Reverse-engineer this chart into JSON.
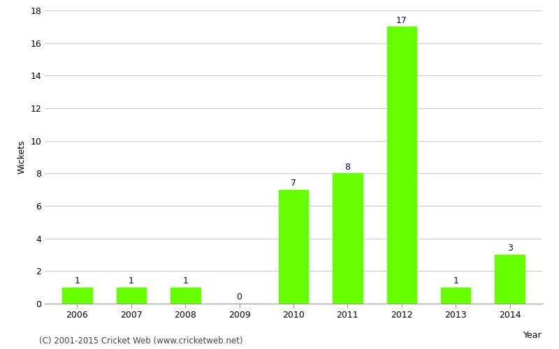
{
  "years": [
    "2006",
    "2007",
    "2008",
    "2009",
    "2010",
    "2011",
    "2012",
    "2013",
    "2014"
  ],
  "values": [
    1,
    1,
    1,
    0,
    7,
    8,
    17,
    1,
    3
  ],
  "bar_color": "#66ff00",
  "label_color": "#000080",
  "xlabel": "Year",
  "ylabel": "Wickets",
  "ylim": [
    0,
    18
  ],
  "yticks": [
    0,
    2,
    4,
    6,
    8,
    10,
    12,
    14,
    16,
    18
  ],
  "background_color": "#ffffff",
  "grid_color": "#cccccc",
  "footer_text": "(C) 2001-2015 Cricket Web (www.cricketweb.net)",
  "label_fontsize": 9,
  "axis_label_fontsize": 9,
  "tick_fontsize": 9,
  "footer_fontsize": 8.5
}
